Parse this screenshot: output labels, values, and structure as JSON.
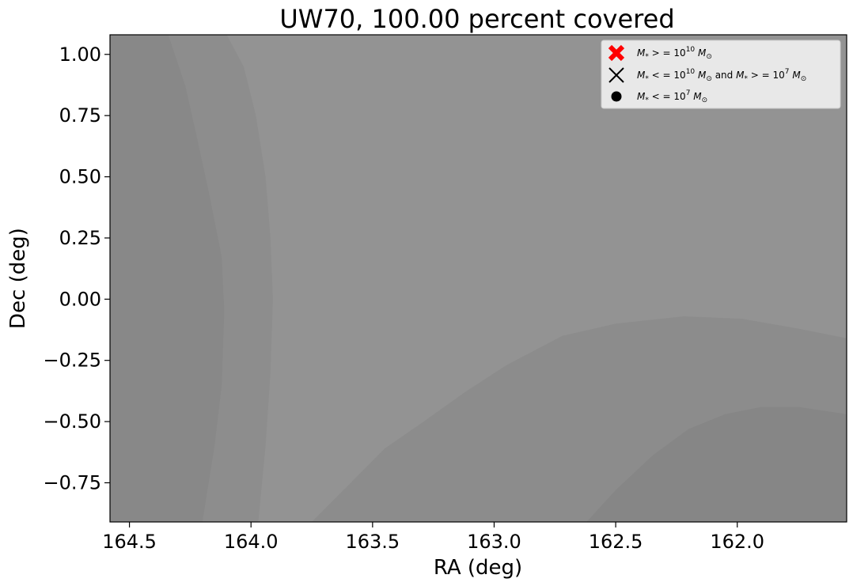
{
  "chart_data": {
    "type": "area",
    "title": "UW70, 100.00 percent covered",
    "xlabel": "RA (deg)",
    "ylabel": "Dec (deg)",
    "xlim": [
      164.58,
      161.55
    ],
    "ylim": [
      -0.91,
      1.08
    ],
    "x_inverted": true,
    "grid": false,
    "x_ticks": [
      164.5,
      164.0,
      163.5,
      163.0,
      162.5,
      162.0
    ],
    "x_tick_labels": [
      "164.5",
      "164.0",
      "163.5",
      "163.0",
      "162.5",
      "162.0"
    ],
    "y_ticks": [
      1.0,
      0.75,
      0.5,
      0.25,
      0.0,
      -0.25,
      -0.5,
      -0.75
    ],
    "y_tick_labels": [
      "1.00",
      "0.75",
      "0.50",
      "0.25",
      "0.00",
      "−0.25",
      "−0.50",
      "−0.75"
    ],
    "background_color": "#939393",
    "coverage_regions": [
      {
        "color": "#8d8d8d",
        "boundary": [
          [
            164.58,
            1.08
          ],
          [
            164.1,
            1.08
          ],
          [
            164.03,
            0.95
          ],
          [
            163.98,
            0.75
          ],
          [
            163.94,
            0.5
          ],
          [
            163.92,
            0.25
          ],
          [
            163.91,
            0.0
          ],
          [
            163.92,
            -0.3
          ],
          [
            163.94,
            -0.6
          ],
          [
            163.97,
            -0.91
          ],
          [
            164.58,
            -0.91
          ]
        ]
      },
      {
        "color": "#888888",
        "boundary": [
          [
            164.58,
            1.08
          ],
          [
            164.34,
            1.08
          ],
          [
            164.27,
            0.87
          ],
          [
            164.22,
            0.65
          ],
          [
            164.17,
            0.42
          ],
          [
            164.12,
            0.17
          ],
          [
            164.11,
            -0.05
          ],
          [
            164.12,
            -0.35
          ],
          [
            164.15,
            -0.6
          ],
          [
            164.2,
            -0.91
          ],
          [
            164.58,
            -0.91
          ]
        ]
      },
      {
        "color": "#8c8c8c",
        "boundary": [
          [
            163.75,
            -0.91
          ],
          [
            163.6,
            -0.76
          ],
          [
            163.45,
            -0.61
          ],
          [
            163.29,
            -0.5
          ],
          [
            163.12,
            -0.38
          ],
          [
            162.95,
            -0.27
          ],
          [
            162.72,
            -0.15
          ],
          [
            162.5,
            -0.1
          ],
          [
            162.22,
            -0.07
          ],
          [
            161.98,
            -0.08
          ],
          [
            161.75,
            -0.12
          ],
          [
            161.55,
            -0.16
          ],
          [
            161.55,
            -0.91
          ]
        ]
      },
      {
        "color": "#868686",
        "boundary": [
          [
            162.62,
            -0.91
          ],
          [
            162.5,
            -0.78
          ],
          [
            162.35,
            -0.64
          ],
          [
            162.2,
            -0.53
          ],
          [
            162.05,
            -0.47
          ],
          [
            161.9,
            -0.44
          ],
          [
            161.75,
            -0.44
          ],
          [
            161.55,
            -0.47
          ],
          [
            161.55,
            -0.91
          ]
        ]
      }
    ],
    "legend": {
      "placement": "top-right",
      "entries": [
        {
          "marker": "filled-x",
          "color": "#ff0000",
          "pre": "M",
          "sub": "*",
          "rel": " > = 10",
          "exp": "10",
          "unit": "M",
          "unit_sub": "⊙",
          "tail": ""
        },
        {
          "marker": "x",
          "color": "#000000",
          "pre": "M",
          "sub": "*",
          "rel": " < = 10",
          "exp": "10",
          "unit": "M",
          "unit_sub": "⊙",
          "tail": " and M* > = 10^7 M⊙"
        },
        {
          "marker": "circle",
          "color": "#000000",
          "pre": "M",
          "sub": "*",
          "rel": " < = 10",
          "exp": "7",
          "unit": "M",
          "unit_sub": "⊙",
          "tail": ""
        }
      ]
    }
  }
}
